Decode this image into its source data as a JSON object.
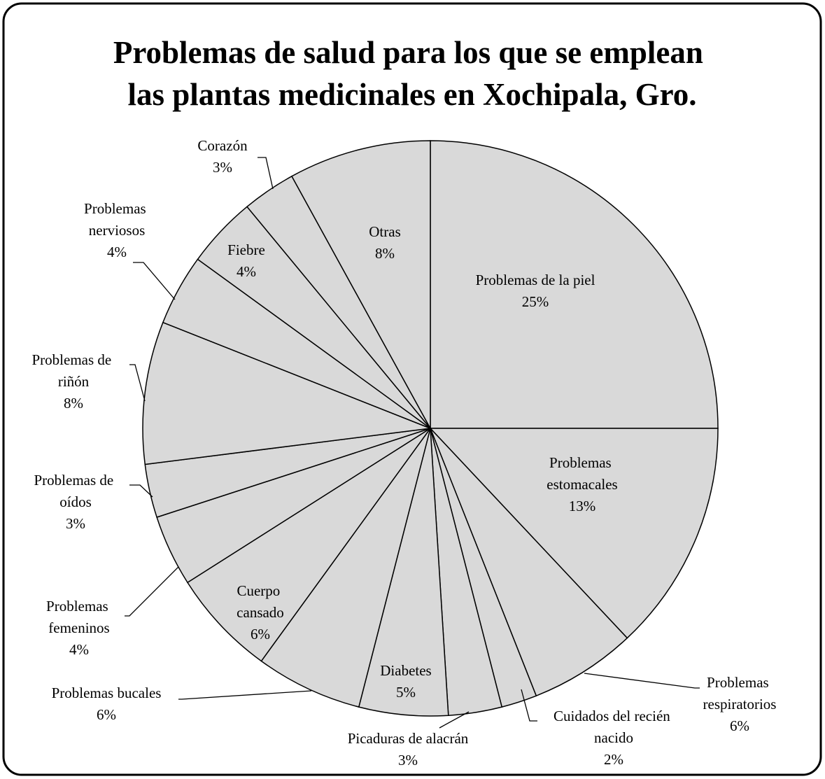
{
  "chart_data": {
    "type": "pie",
    "title": "Problemas de salud para los que se emplean las plantas medicinales en Xochipala, Gro.",
    "categories": [
      "Problemas de la piel",
      "Problemas estomacales",
      "Problemas respiratorios",
      "Cuidados del recién nacido",
      "Picaduras de alacrán",
      "Diabetes",
      "Problemas bucales",
      "Cuerpo cansado",
      "Problemas femeninos",
      "Problemas de oídos",
      "Problemas de riñón",
      "Problemas nerviosos",
      "Fiebre",
      "Corazón",
      "Otras"
    ],
    "values": [
      25,
      13,
      6,
      2,
      3,
      5,
      6,
      6,
      4,
      3,
      8,
      4,
      4,
      3,
      8
    ],
    "value_labels": [
      "25%",
      "13%",
      "6%",
      "2%",
      "3%",
      "5%",
      "6%",
      "6%",
      "4%",
      "3%",
      "8%",
      "4%",
      "4%",
      "3%",
      "8%"
    ],
    "color": "#d9d9d9"
  }
}
